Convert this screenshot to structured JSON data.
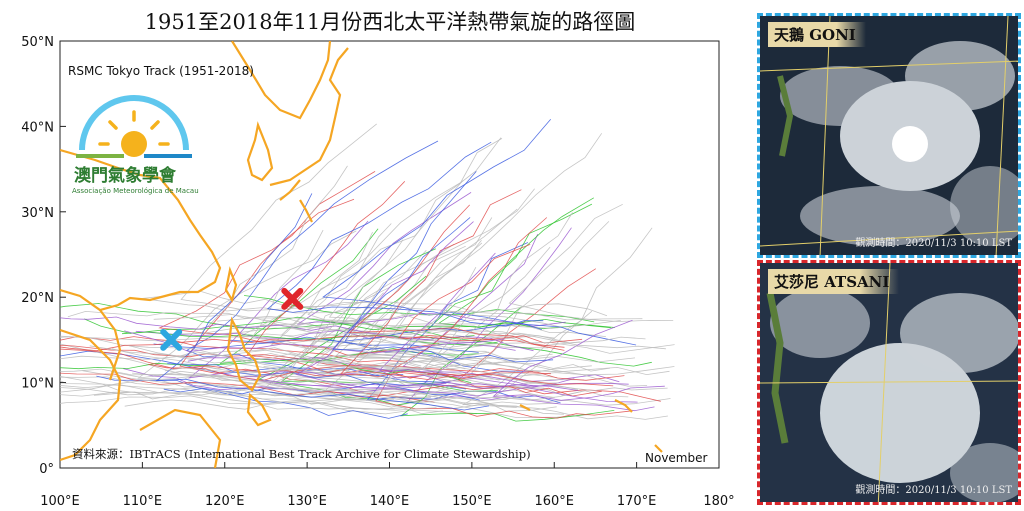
{
  "title": "1951至2018年11月份西北太平洋熱帶氣旋的路徑圖",
  "map": {
    "track_label": "RSMC Tokyo Track (1951-2018)",
    "month_label": "November",
    "source": "資料來源：IBTrACS (International Best Track Archive for Climate Stewardship)",
    "lat_labels": [
      "50°N",
      "40°N",
      "30°N",
      "20°N",
      "10°N",
      "0°"
    ],
    "lon_labels": [
      "100°E",
      "110°E",
      "120°E",
      "130°E",
      "140°E",
      "150°E",
      "160°E",
      "170°E",
      "180°"
    ],
    "markers": [
      {
        "name": "red-x",
        "lon": 128.2,
        "lat": 19.8,
        "color": "#e0262b"
      },
      {
        "name": "blue-x",
        "lon": 113.5,
        "lat": 15.0,
        "color": "#2ea7e0"
      }
    ],
    "colors": {
      "land": "#f5a623",
      "ocean": "#ffffff"
    }
  },
  "logo": {
    "name_zh": "澳門氣象學會",
    "name_pt": "Associação Meteorológica de Macau"
  },
  "panels": [
    {
      "label": "天鵝 GONI",
      "obs": "觀測時間：2020/11/3 10:10 LST",
      "border": "#2ea7e0"
    },
    {
      "label": "艾莎尼 ATSANI",
      "obs": "觀測時間：2020/11/3 10:10 LST",
      "border": "#d8262b"
    }
  ]
}
